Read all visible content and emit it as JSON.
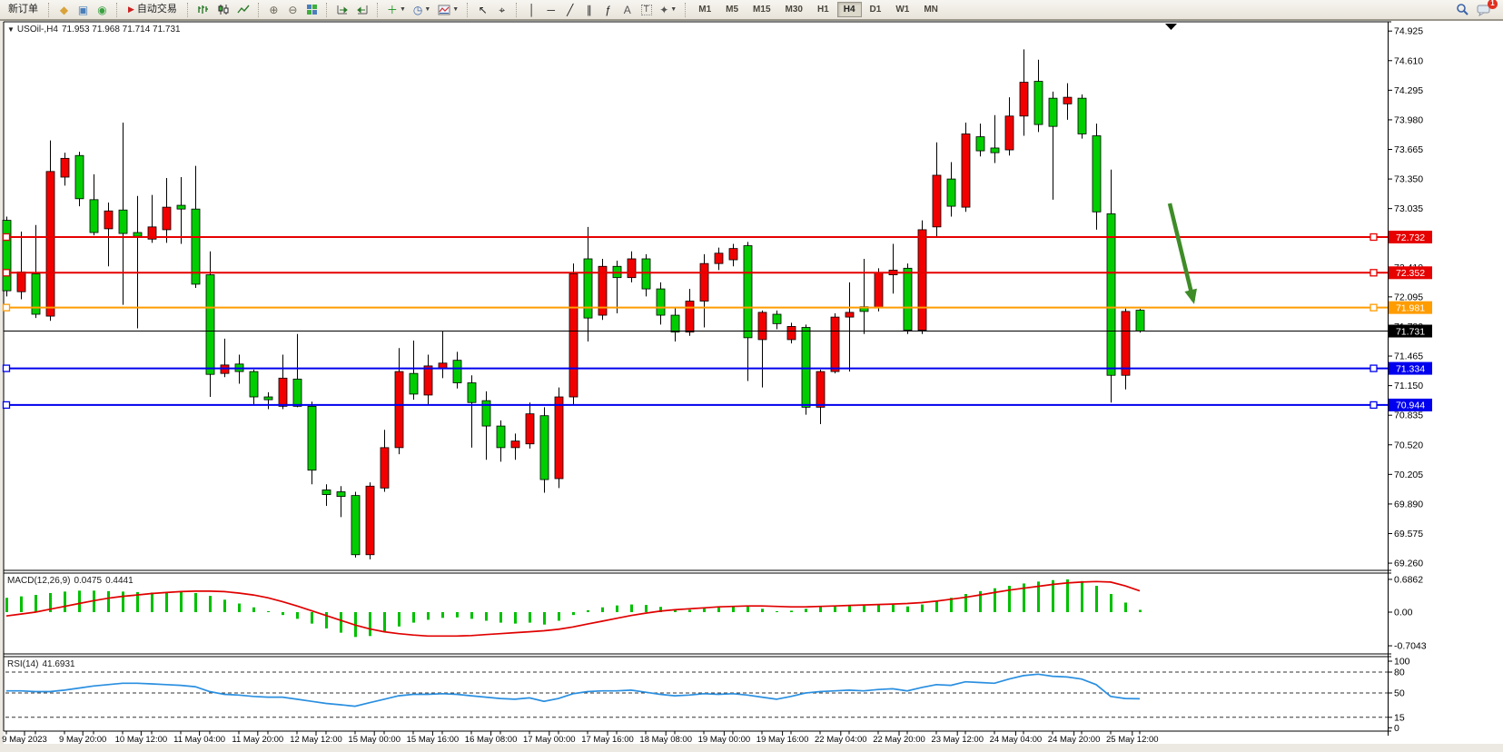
{
  "toolbar": {
    "items": [
      {
        "name": "new-order-button",
        "type": "text",
        "label": "新订单"
      },
      {
        "name": "mql-community-icon",
        "type": "glyph",
        "glyph": "◆",
        "color": "#d9a33c",
        "sep_before": true
      },
      {
        "name": "charts-window-icon",
        "type": "glyph",
        "glyph": "▣",
        "color": "#4a7ebb"
      },
      {
        "name": "signals-icon",
        "type": "glyph",
        "glyph": "◉",
        "color": "#39a13f"
      },
      {
        "name": "auto-trading-button",
        "type": "text",
        "label": "自动交易",
        "icon": "▶",
        "icon_color": "#cc2020",
        "sep_before": true
      },
      {
        "name": "bar-chart-button",
        "type": "draw",
        "draw": "bars",
        "sep_before": true
      },
      {
        "name": "candlestick-chart-button",
        "type": "draw",
        "draw": "candles"
      },
      {
        "name": "line-chart-button",
        "type": "draw",
        "draw": "line"
      },
      {
        "name": "zoom-in-button",
        "type": "glyph",
        "glyph": "⊕",
        "color": "#6b6658",
        "sep_before": true
      },
      {
        "name": "zoom-out-button",
        "type": "glyph",
        "glyph": "⊖",
        "color": "#6b6658"
      },
      {
        "name": "tile-windows-button",
        "type": "draw",
        "draw": "tile"
      },
      {
        "name": "auto-scroll-button",
        "type": "draw",
        "draw": "autoscroll",
        "sep_before": true
      },
      {
        "name": "chart-shift-button",
        "type": "draw",
        "draw": "chartshift"
      },
      {
        "name": "indicators-button",
        "type": "glyph",
        "glyph": "＋",
        "color": "#18941e",
        "dropdown": true,
        "sep_before": true
      },
      {
        "name": "periods-button",
        "type": "glyph",
        "glyph": "◷",
        "color": "#3a63a8",
        "dropdown": true
      },
      {
        "name": "templates-button",
        "type": "draw",
        "draw": "template",
        "dropdown": true
      },
      {
        "name": "cursor-button",
        "type": "glyph",
        "glyph": "↖",
        "color": "#222",
        "sep_before": true
      },
      {
        "name": "crosshair-button",
        "type": "glyph",
        "glyph": "⌖",
        "color": "#222"
      },
      {
        "name": "vertical-line-button",
        "type": "glyph",
        "glyph": "│",
        "color": "#222",
        "sep_before": true
      },
      {
        "name": "horizontal-line-button",
        "type": "glyph",
        "glyph": "─",
        "color": "#222"
      },
      {
        "name": "trendline-button",
        "type": "glyph",
        "glyph": "╱",
        "color": "#222"
      },
      {
        "name": "equidistant-channel-button",
        "type": "glyph",
        "glyph": "∥",
        "color": "#222"
      },
      {
        "name": "fibonacci-button",
        "type": "glyph",
        "glyph": "ƒ",
        "color": "#222"
      },
      {
        "name": "text-button",
        "type": "glyph",
        "glyph": "A",
        "color": "#555"
      },
      {
        "name": "text-label-button",
        "type": "glyph",
        "glyph": "T",
        "color": "#555",
        "boxed": true
      },
      {
        "name": "shapes-button",
        "type": "glyph",
        "glyph": "✦",
        "color": "#555",
        "dropdown": true
      }
    ],
    "timeframes": {
      "items": [
        "M1",
        "M5",
        "M15",
        "M30",
        "H1",
        "H4",
        "D1",
        "W1",
        "MN"
      ],
      "active": "H4"
    },
    "notification_badge": "1"
  },
  "chart": {
    "title_symbol_period": "USOil-,H4",
    "title_ohlc": "71.953 71.968 71.714 71.731"
  },
  "chart_data": {
    "type": "candlestick",
    "symbol": "USOil-",
    "period": "H4",
    "current_bar": {
      "open": 71.953,
      "high": 71.968,
      "low": 71.714,
      "close": 71.731
    },
    "convention": "red=bullish, green=bearish (Chinese color scheme)",
    "price_axis_ticks": [
      74.925,
      74.61,
      74.295,
      73.98,
      73.665,
      73.35,
      73.035,
      72.41,
      72.095,
      71.78,
      71.465,
      71.15,
      70.835,
      70.52,
      70.205,
      69.89,
      69.575,
      69.26
    ],
    "price_axis_range": [
      69.1,
      75.05
    ],
    "time_labels": [
      "9 May 2023",
      "9 May 20:00",
      "10 May 12:00",
      "11 May 04:00",
      "11 May 20:00",
      "12 May 12:00",
      "15 May 00:00",
      "15 May 16:00",
      "16 May 08:00",
      "17 May 00:00",
      "17 May 16:00",
      "18 May 08:00",
      "19 May 00:00",
      "19 May 16:00",
      "22 May 04:00",
      "22 May 20:00",
      "23 May 12:00",
      "24 May 04:00",
      "24 May 20:00",
      "25 May 12:00"
    ],
    "hlines": [
      {
        "label": "72.732",
        "price": 72.732,
        "color": "#e60000",
        "kind": "resistance-line",
        "markers": true
      },
      {
        "label": "72.352",
        "price": 72.352,
        "color": "#e60000",
        "kind": "resistance-line",
        "markers": true
      },
      {
        "label": "71.981",
        "price": 71.981,
        "color": "#ff9c00",
        "kind": "pivot-line",
        "markers": true
      },
      {
        "label": "71.731",
        "price": 71.731,
        "color": "#000000",
        "kind": "bid-price-line",
        "markers": false
      },
      {
        "label": "71.334",
        "price": 71.334,
        "color": "#0000ee",
        "kind": "support-line",
        "markers": true
      },
      {
        "label": "70.944",
        "price": 70.944,
        "color": "#0000ee",
        "kind": "support-line",
        "markers": true
      }
    ],
    "candles_ohlc": [
      [
        72.91,
        72.95,
        72.1,
        72.16
      ],
      [
        72.15,
        72.79,
        72.07,
        72.36
      ],
      [
        72.34,
        72.86,
        71.87,
        71.91
      ],
      [
        71.89,
        73.76,
        71.84,
        73.43
      ],
      [
        73.37,
        73.63,
        73.28,
        73.57
      ],
      [
        73.6,
        73.64,
        73.06,
        73.14
      ],
      [
        73.13,
        73.4,
        72.75,
        72.78
      ],
      [
        72.82,
        73.1,
        72.42,
        73.01
      ],
      [
        73.02,
        73.95,
        72.01,
        72.77
      ],
      [
        72.78,
        73.17,
        71.76,
        72.74
      ],
      [
        72.71,
        73.18,
        72.67,
        72.84
      ],
      [
        72.81,
        73.36,
        72.67,
        73.05
      ],
      [
        73.07,
        73.37,
        72.66,
        73.03
      ],
      [
        73.03,
        73.49,
        72.19,
        72.23
      ],
      [
        72.33,
        72.58,
        71.03,
        71.27
      ],
      [
        71.28,
        71.65,
        71.24,
        71.37
      ],
      [
        71.38,
        71.48,
        71.17,
        71.3
      ],
      [
        71.3,
        71.32,
        70.95,
        71.03
      ],
      [
        71.03,
        71.08,
        70.9,
        71.0
      ],
      [
        70.93,
        71.48,
        70.9,
        71.23
      ],
      [
        71.22,
        71.7,
        70.92,
        70.93
      ],
      [
        70.93,
        70.98,
        70.1,
        70.25
      ],
      [
        70.04,
        70.1,
        69.87,
        69.99
      ],
      [
        70.02,
        70.08,
        69.75,
        69.97
      ],
      [
        69.98,
        70.02,
        69.32,
        69.35
      ],
      [
        69.35,
        70.12,
        69.3,
        70.08
      ],
      [
        70.06,
        70.68,
        70.02,
        70.49
      ],
      [
        70.49,
        71.55,
        70.42,
        71.3
      ],
      [
        71.28,
        71.63,
        71.0,
        71.06
      ],
      [
        71.05,
        71.48,
        70.95,
        71.36
      ],
      [
        71.33,
        71.73,
        71.23,
        71.39
      ],
      [
        71.42,
        71.51,
        71.12,
        71.18
      ],
      [
        71.18,
        71.26,
        70.49,
        70.97
      ],
      [
        70.99,
        71.09,
        70.36,
        70.72
      ],
      [
        70.72,
        70.78,
        70.34,
        70.49
      ],
      [
        70.49,
        70.64,
        70.36,
        70.56
      ],
      [
        70.53,
        70.97,
        70.48,
        70.85
      ],
      [
        70.83,
        70.92,
        70.01,
        70.15
      ],
      [
        70.16,
        71.13,
        70.06,
        71.03
      ],
      [
        71.03,
        72.45,
        70.95,
        72.34
      ],
      [
        72.5,
        72.84,
        71.62,
        71.87
      ],
      [
        71.9,
        72.5,
        71.85,
        72.42
      ],
      [
        72.42,
        72.48,
        71.92,
        72.3
      ],
      [
        72.3,
        72.58,
        72.25,
        72.5
      ],
      [
        72.5,
        72.55,
        72.1,
        72.18
      ],
      [
        72.18,
        72.25,
        71.8,
        71.9
      ],
      [
        71.9,
        71.98,
        71.62,
        71.72
      ],
      [
        71.72,
        72.18,
        71.68,
        72.05
      ],
      [
        72.05,
        72.55,
        71.77,
        72.45
      ],
      [
        72.45,
        72.62,
        72.38,
        72.56
      ],
      [
        72.49,
        72.66,
        72.42,
        72.61
      ],
      [
        72.64,
        72.68,
        71.2,
        71.66
      ],
      [
        71.64,
        71.95,
        71.13,
        71.93
      ],
      [
        71.91,
        71.95,
        71.75,
        71.81
      ],
      [
        71.64,
        71.82,
        71.6,
        71.78
      ],
      [
        71.77,
        71.8,
        70.84,
        70.92
      ],
      [
        70.92,
        71.32,
        70.74,
        71.3
      ],
      [
        71.3,
        71.92,
        71.28,
        71.88
      ],
      [
        71.88,
        72.25,
        71.3,
        71.93
      ],
      [
        71.99,
        72.5,
        71.7,
        71.94
      ],
      [
        71.98,
        72.4,
        71.94,
        72.35
      ],
      [
        72.33,
        72.66,
        72.13,
        72.38
      ],
      [
        72.4,
        72.45,
        71.7,
        71.74
      ],
      [
        71.74,
        72.91,
        71.7,
        72.81
      ],
      [
        72.84,
        73.74,
        72.74,
        73.39
      ],
      [
        73.35,
        73.53,
        72.95,
        73.06
      ],
      [
        73.05,
        73.95,
        73.0,
        73.83
      ],
      [
        73.8,
        73.94,
        73.59,
        73.65
      ],
      [
        73.68,
        74.03,
        73.52,
        73.63
      ],
      [
        73.66,
        74.22,
        73.6,
        74.02
      ],
      [
        74.02,
        74.73,
        73.81,
        74.38
      ],
      [
        74.39,
        74.62,
        73.85,
        73.93
      ],
      [
        74.21,
        74.28,
        73.13,
        73.91
      ],
      [
        74.15,
        74.37,
        73.98,
        74.22
      ],
      [
        74.21,
        74.25,
        73.78,
        73.83
      ],
      [
        73.81,
        73.94,
        72.81,
        73.0
      ],
      [
        72.98,
        73.45,
        70.97,
        71.26
      ],
      [
        71.26,
        71.97,
        71.11,
        71.94
      ],
      [
        71.953,
        71.968,
        71.714,
        71.731
      ]
    ],
    "macd": {
      "name": "MACD(12,26,9)",
      "main_value": "0.0475",
      "signal_value": "0.4441",
      "axis_labels": [
        {
          "text": "0.6862",
          "value": 0.6862
        },
        {
          "text": "0.00",
          "value": 0
        },
        {
          "text": "-0.7043",
          "value": -0.7043
        }
      ],
      "hist": [
        0.3,
        0.33,
        0.36,
        0.4,
        0.43,
        0.45,
        0.45,
        0.44,
        0.43,
        0.42,
        0.41,
        0.42,
        0.42,
        0.4,
        0.34,
        0.26,
        0.18,
        0.1,
        0.02,
        -0.06,
        -0.14,
        -0.24,
        -0.34,
        -0.43,
        -0.52,
        -0.5,
        -0.42,
        -0.3,
        -0.22,
        -0.16,
        -0.12,
        -0.11,
        -0.14,
        -0.18,
        -0.22,
        -0.24,
        -0.22,
        -0.26,
        -0.18,
        -0.06,
        0.04,
        0.1,
        0.14,
        0.16,
        0.15,
        0.11,
        0.06,
        0.05,
        0.08,
        0.11,
        0.13,
        0.12,
        0.07,
        0.02,
        0.03,
        0.07,
        0.11,
        0.13,
        0.15,
        0.15,
        0.16,
        0.16,
        0.12,
        0.16,
        0.24,
        0.3,
        0.38,
        0.44,
        0.5,
        0.55,
        0.6,
        0.64,
        0.67,
        0.686,
        0.65,
        0.55,
        0.38,
        0.2,
        0.0475
      ],
      "signal": [
        -0.08,
        -0.04,
        0.0,
        0.06,
        0.12,
        0.18,
        0.24,
        0.29,
        0.33,
        0.36,
        0.39,
        0.41,
        0.43,
        0.44,
        0.44,
        0.43,
        0.4,
        0.36,
        0.3,
        0.22,
        0.13,
        0.03,
        -0.07,
        -0.17,
        -0.27,
        -0.35,
        -0.41,
        -0.45,
        -0.48,
        -0.5,
        -0.5,
        -0.5,
        -0.49,
        -0.47,
        -0.45,
        -0.43,
        -0.41,
        -0.39,
        -0.36,
        -0.31,
        -0.25,
        -0.19,
        -0.13,
        -0.07,
        -0.02,
        0.02,
        0.05,
        0.07,
        0.09,
        0.11,
        0.12,
        0.13,
        0.13,
        0.12,
        0.11,
        0.11,
        0.12,
        0.13,
        0.14,
        0.15,
        0.16,
        0.17,
        0.18,
        0.2,
        0.23,
        0.27,
        0.31,
        0.36,
        0.41,
        0.46,
        0.5,
        0.54,
        0.58,
        0.61,
        0.63,
        0.64,
        0.63,
        0.55,
        0.4441
      ]
    },
    "rsi": {
      "name": "RSI(14)",
      "value": "41.6931",
      "axis_labels": [
        {
          "text": "100",
          "value": 100
        },
        {
          "text": "80",
          "value": 80
        },
        {
          "text": "50",
          "value": 50
        },
        {
          "text": "15",
          "value": 15
        },
        {
          "text": "0",
          "value": 0
        }
      ],
      "level_lines": [
        80,
        50,
        15
      ],
      "values": [
        53,
        53,
        52,
        52,
        54,
        57,
        60,
        62,
        64,
        64,
        63,
        62,
        61,
        59,
        52,
        48,
        47,
        45,
        44,
        44,
        41,
        38,
        35,
        33,
        31,
        36,
        41,
        46,
        48,
        48,
        49,
        48,
        46,
        44,
        42,
        41,
        43,
        38,
        42,
        49,
        52,
        53,
        53,
        54,
        51,
        48,
        46,
        47,
        49,
        48,
        49,
        47,
        44,
        41,
        45,
        50,
        52,
        53,
        54,
        53,
        55,
        56,
        53,
        58,
        62,
        61,
        66,
        65,
        64,
        70,
        75,
        77,
        74,
        73,
        70,
        62,
        45,
        42,
        41.69
      ]
    },
    "annotations": [
      {
        "name": "downtrend-arrow",
        "color": "#3e8c28",
        "from_price": 73.2,
        "to_price": 71.95,
        "near_time": "after 25 May 12:00"
      }
    ],
    "chart_shift_marker": true,
    "colors": {
      "bull_candle": "#f20000",
      "bear_candle": "#00ce00",
      "macd_hist": "#00c000",
      "macd_signal": "#e00000",
      "rsi_line": "#2a8fe0"
    }
  }
}
